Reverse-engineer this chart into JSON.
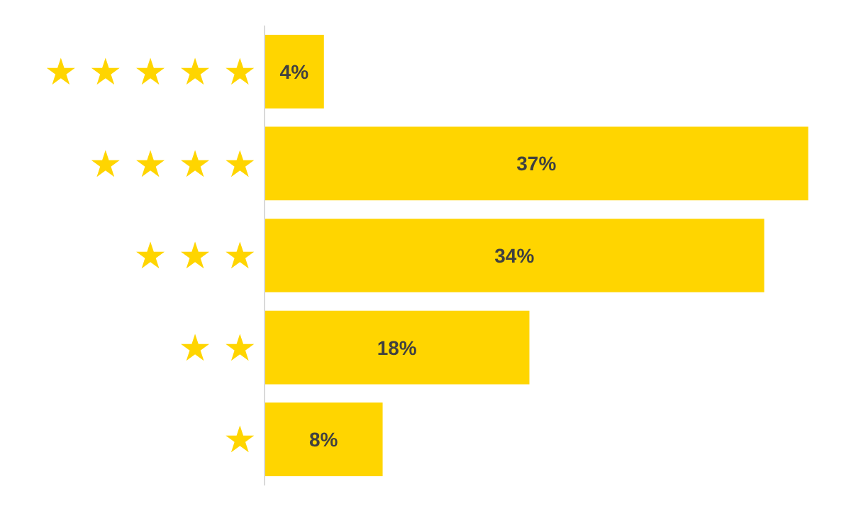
{
  "chart_data": {
    "type": "bar",
    "orientation": "horizontal",
    "categories": [
      "★ ★ ★ ★ ★",
      "★ ★ ★ ★",
      "★ ★ ★",
      "★ ★",
      "★"
    ],
    "values": [
      4,
      37,
      34,
      18,
      8
    ],
    "value_labels": [
      "4%",
      "37%",
      "34%",
      "18%",
      "8%"
    ],
    "color": "#ffd500",
    "tick_labels": "y",
    "grid": false
  }
}
